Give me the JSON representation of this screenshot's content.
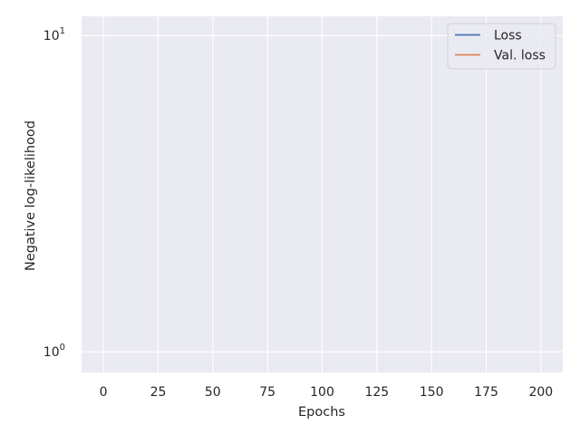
{
  "chart_data": {
    "type": "line",
    "title": "",
    "xlabel": "Epochs",
    "ylabel": "Negative log-likelihood",
    "xlim": [
      -10,
      210
    ],
    "ylim": [
      0.86,
      11.5
    ],
    "yscale": "log",
    "x_ticks": [
      0,
      25,
      50,
      75,
      100,
      125,
      150,
      175,
      200
    ],
    "x_tick_labels": [
      "0",
      "25",
      "50",
      "75",
      "100",
      "125",
      "150",
      "175",
      "200"
    ],
    "y_ticks": [
      1,
      10
    ],
    "y_tick_labels": [
      {
        "base": "10",
        "exp": "0"
      },
      {
        "base": "10",
        "exp": "1"
      }
    ],
    "grid": true,
    "style": {
      "background": "#eaeaf2",
      "grid_color": "#ffffff"
    },
    "legend": {
      "position": "top-right"
    },
    "series": [
      {
        "name": "Loss",
        "color": "#4c72b0",
        "x": [],
        "y": []
      },
      {
        "name": "Val. loss",
        "color": "#dd8452",
        "x": [],
        "y": []
      }
    ]
  }
}
